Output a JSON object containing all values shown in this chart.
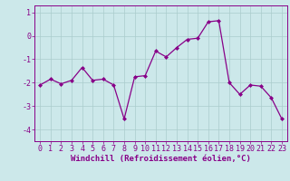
{
  "x": [
    0,
    1,
    2,
    3,
    4,
    5,
    6,
    7,
    8,
    9,
    10,
    11,
    12,
    13,
    14,
    15,
    16,
    17,
    18,
    19,
    20,
    21,
    22,
    23
  ],
  "y": [
    -2.1,
    -1.85,
    -2.05,
    -1.9,
    -1.35,
    -1.9,
    -1.85,
    -2.1,
    -3.55,
    -1.75,
    -1.7,
    -0.65,
    -0.9,
    -0.5,
    -0.15,
    -0.1,
    0.6,
    0.65,
    -2.0,
    -2.5,
    -2.1,
    -2.15,
    -2.65,
    -3.55
  ],
  "line_color": "#880088",
  "marker": "D",
  "marker_size": 2.0,
  "bg_color": "#cce8ea",
  "grid_color": "#aacccc",
  "xlabel": "Windchill (Refroidissement éolien,°C)",
  "xlabel_fontsize": 6.5,
  "tick_fontsize": 6.0,
  "ylim": [
    -4.5,
    1.3
  ],
  "yticks": [
    1,
    0,
    -1,
    -2,
    -3,
    -4
  ],
  "xlim": [
    -0.5,
    23.5
  ],
  "spine_color": "#880088"
}
